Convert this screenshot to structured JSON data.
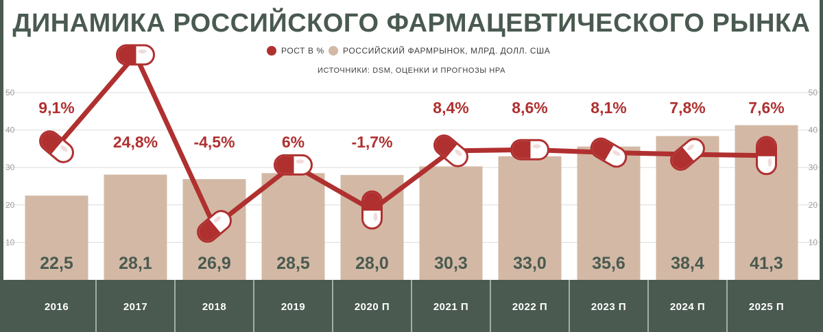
{
  "colors": {
    "bar": "#d3b9a5",
    "line": "#b03030",
    "title": "#4a5a50",
    "footer": "#4a5a50",
    "frame": "#4a5a50",
    "grid": "#dcdcdc"
  },
  "legend": {
    "growth_label": "РОСТ В %",
    "market_label": "РОССИЙСКИЙ ФАРМРЫНОК, МЛРД. ДОЛЛ. США"
  },
  "source": "ИСТОЧНИКИ: DSM, ОЦЕНКИ И ПРОГНОЗЫ НРА",
  "chart_data": {
    "type": "bar",
    "title": "ДИНАМИКА РОССИЙСКОГО ФАРМАЦЕВТИЧЕСКОГО РЫНКА",
    "categories": [
      "2016",
      "2017",
      "2018",
      "2019",
      "2020 П",
      "2021 П",
      "2022 П",
      "2023 П",
      "2024 П",
      "2025 П"
    ],
    "series": [
      {
        "name": "РОССИЙСКИЙ ФАРМРЫНОК, МЛРД. ДОЛЛ. США",
        "type": "bar",
        "values": [
          22.5,
          28.1,
          26.9,
          28.5,
          28.0,
          30.3,
          33.0,
          35.6,
          38.4,
          41.3
        ],
        "labels": [
          "22,5",
          "28,1",
          "26,9",
          "28,5",
          "28,0",
          "30,3",
          "33,0",
          "35,6",
          "38,4",
          "41,3"
        ]
      },
      {
        "name": "РОСТ В %",
        "type": "line",
        "values": [
          9.1,
          24.8,
          -4.5,
          6,
          -1.7,
          8.4,
          8.6,
          8.1,
          7.8,
          7.6
        ],
        "labels": [
          "9,1%",
          "24,8%",
          "-4,5%",
          "6%",
          "-1,7%",
          "8,4%",
          "8,6%",
          "8,1%",
          "7,8%",
          "7,6%"
        ]
      }
    ],
    "yticks": [
      10,
      20,
      30,
      40,
      50
    ],
    "ylim": [
      0,
      50
    ],
    "xlabel": "",
    "ylabel": ""
  }
}
